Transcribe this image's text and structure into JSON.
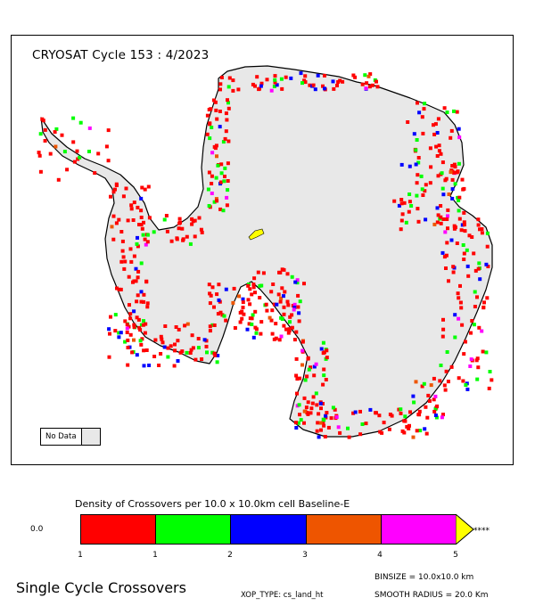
{
  "map": {
    "title": "CRYOSAT Cycle 153 : 4/2023",
    "land_color": "#e8e8e8",
    "coast_color": "#000000"
  },
  "legend": {
    "no_data_label": "No Data",
    "no_data_color": "#e8e8e8"
  },
  "colorbar": {
    "title": "Density of Crossovers per  10.0 x  10.0km cell Baseline-E",
    "zero_label": "0.0",
    "over_label": "****",
    "tick_labels": [
      "1",
      "1",
      "2",
      "3",
      "4",
      "5"
    ],
    "colors": [
      "#ff0000",
      "#00ff00",
      "#0000ff",
      "#ee5500",
      "#ff00ff"
    ],
    "over_color": "#ffff00"
  },
  "footer": {
    "binsize": "BINSIZE = 10.0x10.0 km",
    "smooth_radius": "SMOOTH RADIUS =  20.0 Km",
    "xop_type": "XOP_TYPE: cs_land_ht",
    "caption": "Single Cycle Crossovers"
  }
}
